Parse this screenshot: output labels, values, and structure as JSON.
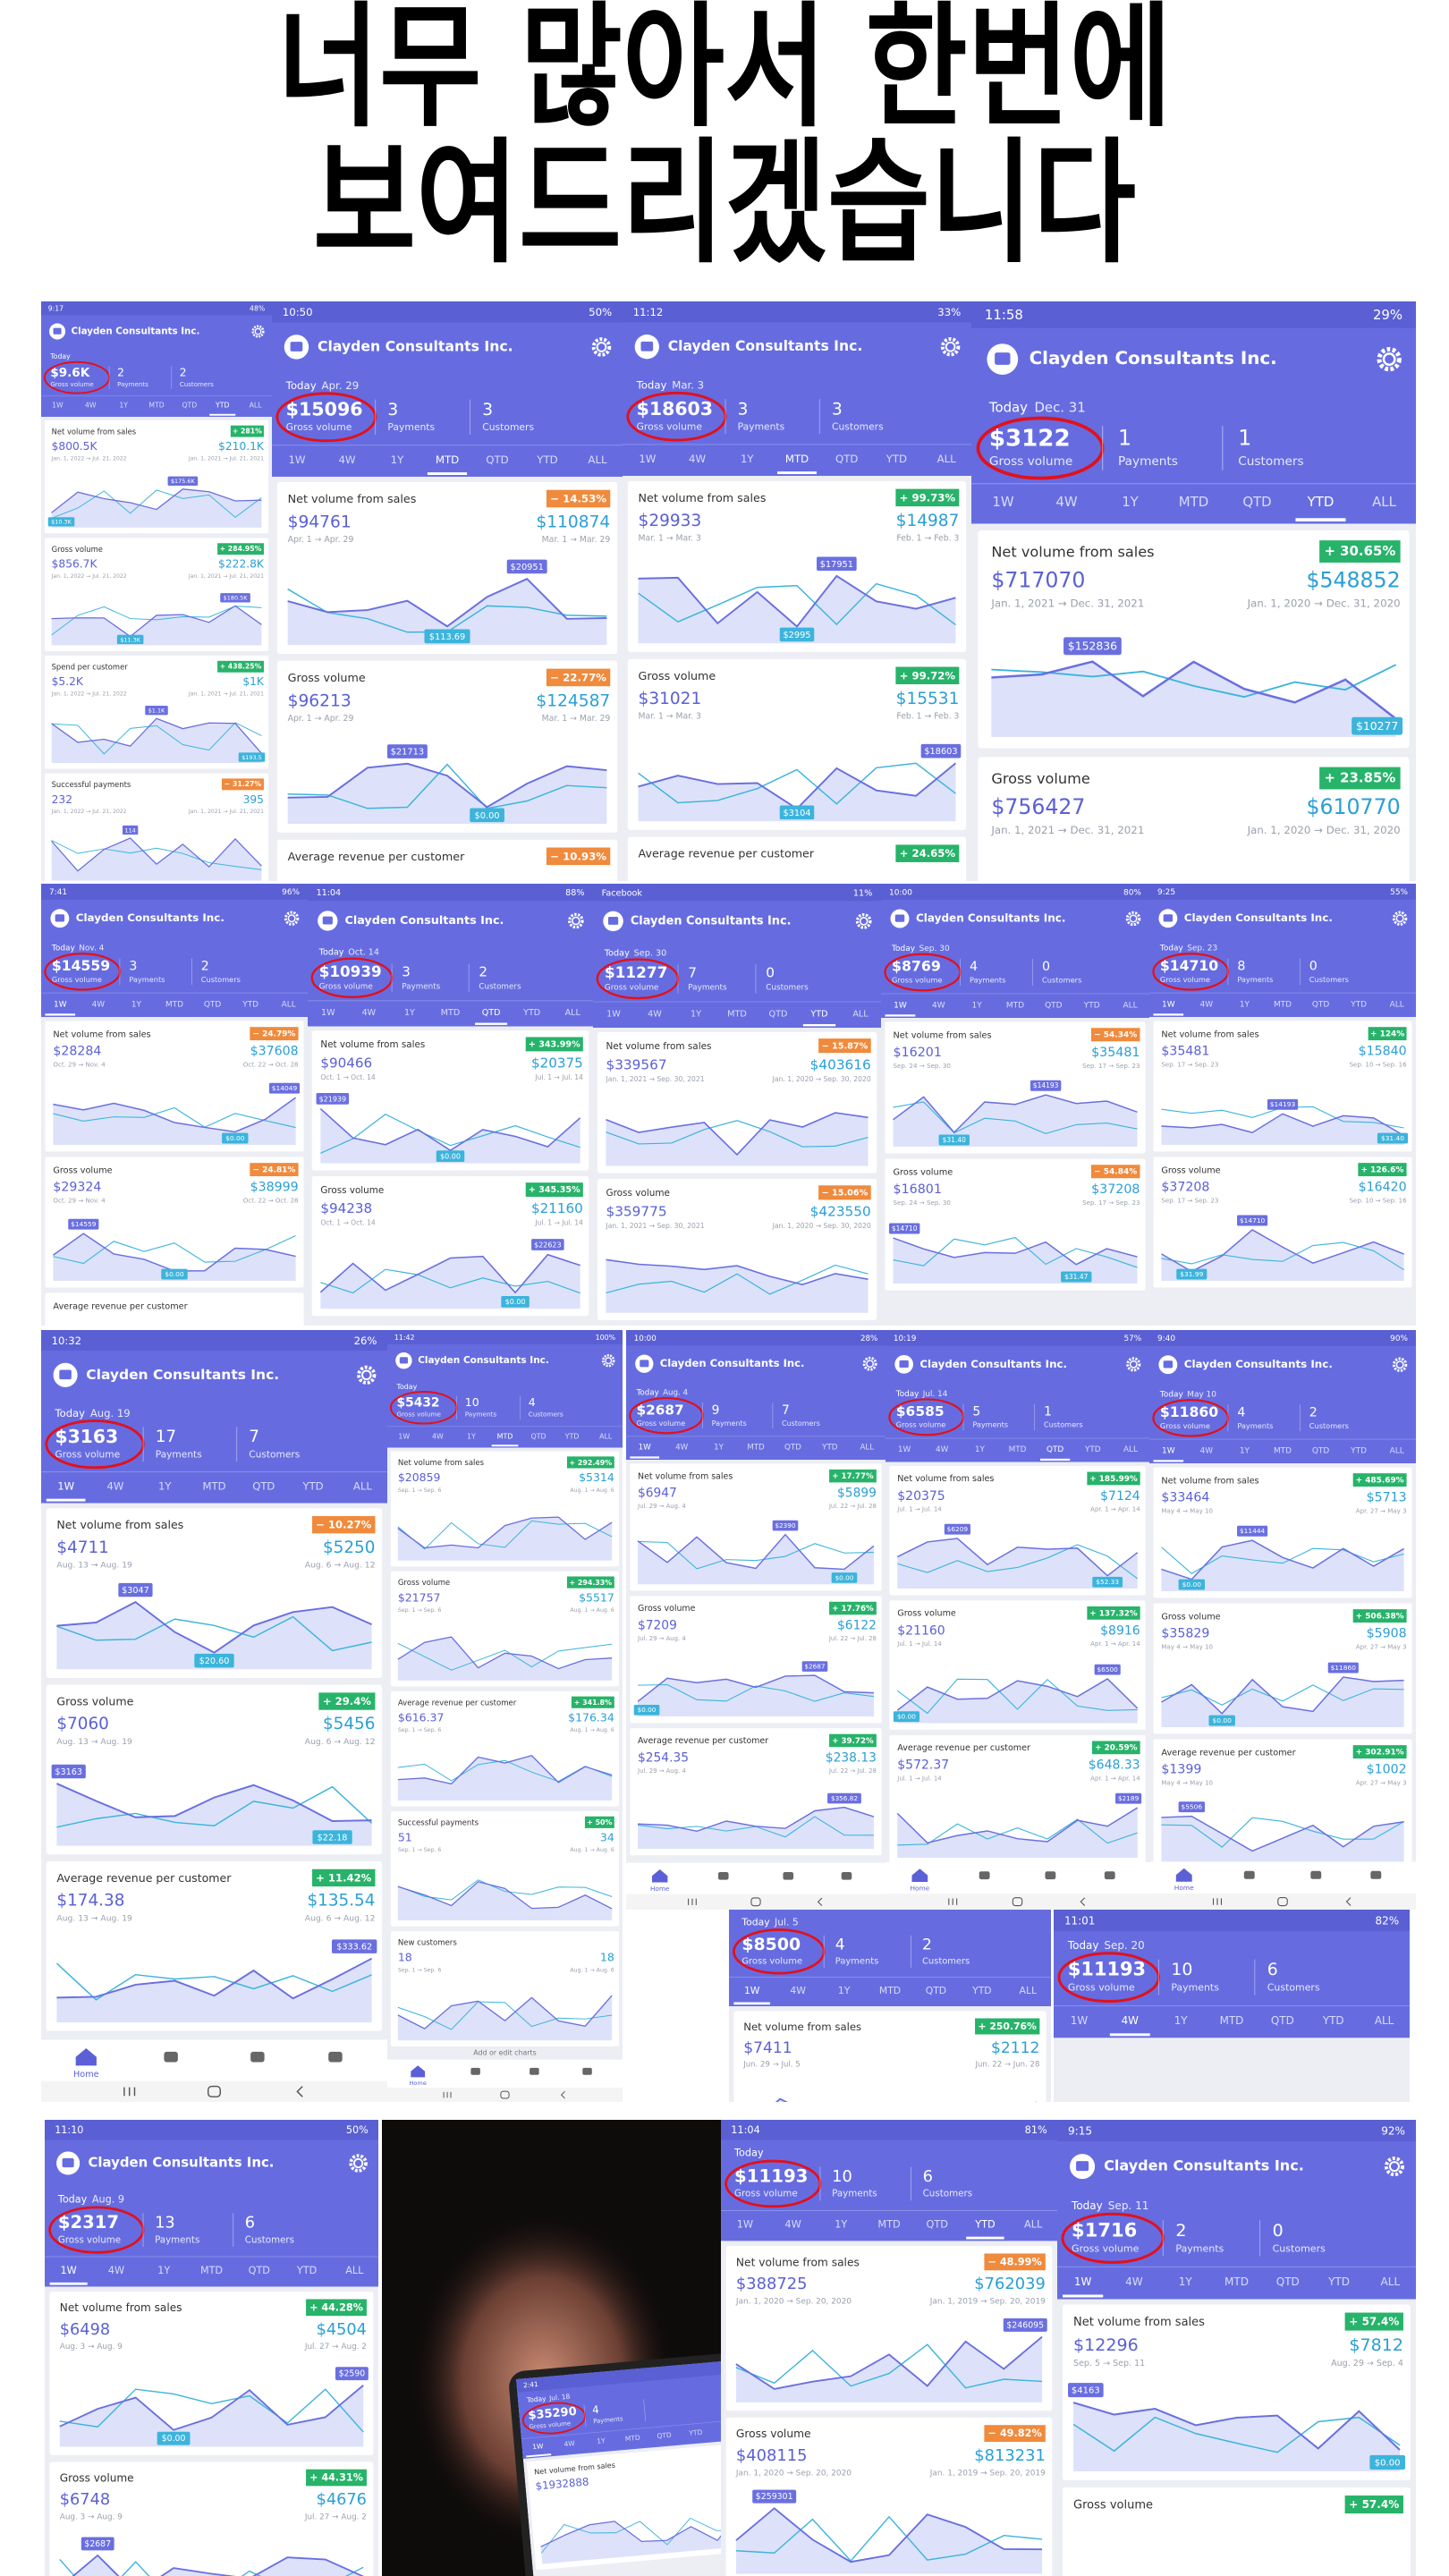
{
  "headline": [
    "너무 많아서 한번에",
    "보여드리겠습니다"
  ],
  "labels": {
    "today": "Today",
    "gross": "Gross volume",
    "payments": "Payments",
    "customers": "Customers",
    "tabs": [
      "1W",
      "4W",
      "1Y",
      "MTD",
      "QTD",
      "YTD",
      "ALL"
    ],
    "home": "Home",
    "add_charts": "Add or edit charts"
  },
  "screens": [
    {
      "time": "9:17",
      "battery": "48%",
      "company": "Clayden Consultants Inc.",
      "gross": "$9.6K",
      "payments": "2",
      "customers": "2",
      "active_tab": "YTD",
      "cards": [
        {
          "title": "Net volume from sales",
          "pct": "+ 281%",
          "value": "$800.5K",
          "compare": "$210.1K",
          "range": "Jan. 1, 2022 → Jul. 21, 2022",
          "compare_range": "Jan. 1, 2021 → Jul. 21, 2021",
          "marks": [
            "$175.6K",
            "$10.3K"
          ]
        },
        {
          "title": "Gross volume",
          "pct": "+ 284.95%",
          "value": "$856.7K",
          "compare": "$222.8K",
          "range": "Jan. 1, 2022 → Jul. 21, 2022",
          "compare_range": "Jan. 1, 2021 → Jul. 21, 2021",
          "marks": [
            "$180.5K",
            "$11.3K"
          ]
        },
        {
          "title": "Spend per customer",
          "pct": "+ 438.25%",
          "value": "$5.2K",
          "compare": "$1K",
          "range": "Jan. 1, 2022 → Jul. 21, 2022",
          "compare_range": "Jan. 1, 2021 → Jul. 21, 2021",
          "marks": [
            "$1.1K",
            "$193.5"
          ]
        },
        {
          "title": "Successful payments",
          "pct": "− 31.27%",
          "value": "232",
          "compare": "395",
          "range": "Jan. 1, 2022 → Jul. 21, 2022",
          "compare_range": "Jan. 1, 2021 → Jul. 21, 2021",
          "marks": [
            "114"
          ]
        }
      ]
    },
    {
      "time": "10:50",
      "battery": "50%",
      "company": "Clayden Consultants Inc.",
      "date": "Apr. 29",
      "gross": "$15096",
      "payments": "3",
      "customers": "3",
      "active_tab": "MTD",
      "cards": [
        {
          "title": "Net volume from sales",
          "pct": "− 14.53%",
          "value": "$94761",
          "compare": "$110874",
          "range": "Apr. 1 → Apr. 29",
          "compare_range": "Mar. 1 → Mar. 29",
          "marks": [
            "$20951",
            "$113.69"
          ]
        },
        {
          "title": "Gross volume",
          "pct": "− 22.77%",
          "value": "$96213",
          "compare": "$124587",
          "range": "Apr. 1 → Apr. 29",
          "compare_range": "Mar. 1 → Mar. 29",
          "marks": [
            "$21713",
            "$0.00"
          ]
        },
        {
          "title": "Average revenue per customer",
          "pct": "− 10.93%"
        }
      ]
    },
    {
      "time": "11:12",
      "battery": "33%",
      "company": "Clayden Consultants Inc.",
      "date": "Mar. 3",
      "gross": "$18603",
      "payments": "3",
      "customers": "3",
      "active_tab": "MTD",
      "cards": [
        {
          "title": "Net volume from sales",
          "pct": "+ 99.73%",
          "value": "$29933",
          "compare": "$14987",
          "range": "Mar. 1 → Mar. 3",
          "compare_range": "Feb. 1 → Feb. 3",
          "marks": [
            "$17951",
            "$2995"
          ]
        },
        {
          "title": "Gross volume",
          "pct": "+ 99.72%",
          "value": "$31021",
          "compare": "$15531",
          "range": "Mar. 1 → Mar. 3",
          "compare_range": "Feb. 1 → Feb. 3",
          "marks": [
            "$18603",
            "$3104"
          ]
        },
        {
          "title": "Average revenue per customer",
          "pct": "+ 24.65%"
        }
      ]
    },
    {
      "time": "11:58",
      "battery": "29%",
      "company": "Clayden Consultants Inc.",
      "date": "Dec. 31",
      "gross": "$3122",
      "payments": "1",
      "customers": "1",
      "active_tab": "YTD",
      "cards": [
        {
          "title": "Net volume from sales",
          "pct": "+ 30.65%",
          "value": "$717070",
          "compare": "$548852",
          "range": "Jan. 1, 2021 → Dec. 31, 2021",
          "compare_range": "Jan. 1, 2020 → Dec. 31, 2020",
          "marks": [
            "$152836",
            "$10277"
          ]
        },
        {
          "title": "Gross volume",
          "pct": "+ 23.85%",
          "value": "$756427",
          "compare": "$610770",
          "range": "Jan. 1, 2021 → Dec. 31, 2021",
          "compare_range": "Jan. 1, 2020 → Dec. 31, 2020"
        }
      ]
    },
    {
      "time": "7:41",
      "battery": "96%",
      "company": "Clayden Consultants Inc.",
      "date": "Nov. 4",
      "gross": "$14559",
      "payments": "3",
      "customers": "2",
      "active_tab": "1W",
      "cards": [
        {
          "title": "Net volume from sales",
          "pct": "− 24.79%",
          "value": "$28284",
          "compare": "$37608",
          "range": "Oct. 29 → Nov. 4",
          "compare_range": "Oct. 22 → Oct. 28",
          "marks": [
            "$14049",
            "$0.00"
          ]
        },
        {
          "title": "Gross volume",
          "pct": "− 24.81%",
          "value": "$29324",
          "compare": "$38999",
          "range": "Oct. 29 → Nov. 4",
          "compare_range": "Oct. 22 → Oct. 28",
          "marks": [
            "$14559",
            "$0.00"
          ]
        },
        {
          "title": "Average revenue per customer"
        }
      ]
    },
    {
      "time": "11:04",
      "battery": "88%",
      "company": "Clayden Consultants Inc.",
      "date": "Oct. 14",
      "gross": "$10939",
      "payments": "3",
      "customers": "2",
      "active_tab": "QTD",
      "cards": [
        {
          "title": "Net volume from sales",
          "pct": "+ 343.99%",
          "value": "$90466",
          "compare": "$20375",
          "range": "Oct. 1 → Oct. 14",
          "compare_range": "Jul. 1 → Jul. 14",
          "marks": [
            "$21939",
            "$0.00"
          ]
        },
        {
          "title": "Gross volume",
          "pct": "+ 345.35%",
          "value": "$94238",
          "compare": "$21160",
          "range": "Oct. 1 → Oct. 14",
          "compare_range": "Jul. 1 → Jul. 14",
          "marks": [
            "$22623",
            "$0.00"
          ]
        }
      ]
    },
    {
      "time": "Facebook",
      "battery": "11%",
      "company": "Clayden Consultants Inc.",
      "date": "Sep. 30",
      "gross": "$11277",
      "payments": "7",
      "customers": "0",
      "active_tab": "YTD",
      "cards": [
        {
          "title": "Net volume from sales",
          "pct": "− 15.87%",
          "value": "$339567",
          "compare": "$403616",
          "range": "Jan. 1, 2021 → Sep. 30, 2021",
          "compare_range": "Jan. 1, 2020 → Sep. 30, 2020"
        },
        {
          "title": "Gross volume",
          "pct": "− 15.06%",
          "value": "$359775",
          "compare": "$423550",
          "range": "Jan. 1, 2021 → Sep. 30, 2021",
          "compare_range": "Jan. 1, 2020 → Sep. 30, 2020"
        }
      ]
    },
    {
      "time": "10:00",
      "battery": "80%",
      "company": "Clayden Consultants Inc.",
      "date": "Sep. 30",
      "gross": "$8769",
      "payments": "4",
      "customers": "0",
      "active_tab": "1W",
      "cards": [
        {
          "title": "Net volume from sales",
          "pct": "− 54.34%",
          "value": "$16201",
          "compare": "$35481",
          "range": "Sep. 24 → Sep. 30",
          "compare_range": "Sep. 17 → Sep. 23",
          "marks": [
            "$14193",
            "$31.40"
          ]
        },
        {
          "title": "Gross volume",
          "pct": "− 54.84%",
          "value": "$16801",
          "compare": "$37208",
          "range": "Sep. 24 → Sep. 30",
          "compare_range": "Sep. 17 → Sep. 23",
          "marks": [
            "$14710",
            "$31.47"
          ]
        }
      ]
    },
    {
      "time": "9:25",
      "battery": "55%",
      "company": "Clayden Consultants Inc.",
      "date": "Sep. 23",
      "gross": "$14710",
      "payments": "8",
      "customers": "0",
      "active_tab": "1W",
      "cards": [
        {
          "title": "Net volume from sales",
          "pct": "+ 124%",
          "value": "$35481",
          "compare": "$15840",
          "range": "Sep. 17 → Sep. 23",
          "compare_range": "Sep. 10 → Sep. 16",
          "marks": [
            "$14193",
            "$31.40"
          ]
        },
        {
          "title": "Gross volume",
          "pct": "+ 126.6%",
          "value": "$37208",
          "compare": "$16420",
          "range": "Sep. 17 → Sep. 23",
          "compare_range": "Sep. 10 → Sep. 16",
          "marks": [
            "$14710",
            "$31.99"
          ]
        }
      ]
    },
    {
      "time": "10:32",
      "battery": "26%",
      "company": "Clayden Consultants Inc.",
      "date": "Aug. 19",
      "gross": "$3163",
      "payments": "17",
      "customers": "7",
      "active_tab": "1W",
      "nav": true,
      "cards": [
        {
          "title": "Net volume from sales",
          "pct": "− 10.27%",
          "value": "$4711",
          "compare": "$5250",
          "range": "Aug. 13 → Aug. 19",
          "compare_range": "Aug. 6 → Aug. 12",
          "marks": [
            "$3047",
            "$20.60"
          ]
        },
        {
          "title": "Gross volume",
          "pct": "+ 29.4%",
          "value": "$7060",
          "compare": "$5456",
          "range": "Aug. 13 → Aug. 19",
          "compare_range": "Aug. 6 → Aug. 12",
          "marks": [
            "$3163",
            "$22.18"
          ]
        },
        {
          "title": "Average revenue per customer",
          "pct": "+ 11.42%",
          "value": "$174.38",
          "compare": "$135.54",
          "range": "Aug. 13 → Aug. 19",
          "compare_range": "Aug. 6 → Aug. 12",
          "marks": [
            "$333.62"
          ]
        }
      ]
    },
    {
      "time": "11:42",
      "battery": "100%",
      "company": "Clayden Consultants Inc.",
      "gross": "$5432",
      "payments": "10",
      "customers": "4",
      "active_tab": "MTD",
      "nav": true,
      "add_charts": true,
      "cards": [
        {
          "title": "Net volume from sales",
          "pct": "+ 292.49%",
          "value": "$20859",
          "compare": "$5314",
          "range": "Sep. 1 → Sep. 6",
          "compare_range": "Aug. 1 → Aug. 6"
        },
        {
          "title": "Gross volume",
          "pct": "+ 294.33%",
          "value": "$21757",
          "compare": "$5517",
          "range": "Sep. 1 → Sep. 6",
          "compare_range": "Aug. 1 → Aug. 6"
        },
        {
          "title": "Average revenue per customer",
          "pct": "+ 341.8%",
          "value": "$616.37",
          "compare": "$176.34",
          "range": "Sep. 1 → Sep. 6",
          "compare_range": "Aug. 1 → Aug. 6"
        },
        {
          "title": "Successful payments",
          "pct": "+ 50%",
          "value": "51",
          "compare": "34",
          "range": "Sep. 1 → Sep. 6",
          "compare_range": "Aug. 1 → Aug. 6"
        },
        {
          "title": "New customers",
          "value": "18",
          "compare": "18",
          "range": "Sep. 1 → Sep. 6",
          "compare_range": "Aug. 1 → Aug. 6"
        }
      ]
    },
    {
      "time": "10:00",
      "battery": "28%",
      "company": "Clayden Consultants Inc.",
      "date": "Aug. 4",
      "gross": "$2687",
      "payments": "9",
      "customers": "7",
      "active_tab": "1W",
      "nav": true,
      "cards": [
        {
          "title": "Net volume from sales",
          "pct": "+ 17.77%",
          "value": "$6947",
          "compare": "$5899",
          "range": "Jul. 29 → Aug. 4",
          "compare_range": "Jul. 22 → Jul. 28",
          "marks": [
            "$2390",
            "$0.00"
          ]
        },
        {
          "title": "Gross volume",
          "pct": "+ 17.76%",
          "value": "$7209",
          "compare": "$6122",
          "range": "Jul. 29 → Aug. 4",
          "compare_range": "Jul. 22 → Jul. 28",
          "marks": [
            "$2687",
            "$0.00"
          ]
        },
        {
          "title": "Average revenue per customer",
          "pct": "+ 39.72%",
          "value": "$254.35",
          "compare": "$238.13",
          "range": "Jul. 29 → Aug. 4",
          "compare_range": "Jul. 22 → Jul. 28",
          "marks": [
            "$356.82"
          ]
        }
      ]
    },
    {
      "time": "10:19",
      "battery": "57%",
      "company": "Clayden Consultants Inc.",
      "date": "Jul. 14",
      "gross": "$6585",
      "payments": "5",
      "customers": "1",
      "active_tab": "QTD",
      "nav": true,
      "cards": [
        {
          "title": "Net volume from sales",
          "pct": "+ 185.99%",
          "value": "$20375",
          "compare": "$7124",
          "range": "Jul. 1 → Jul. 14",
          "compare_range": "Apr. 1 → Apr. 14",
          "marks": [
            "$6209",
            "$52.33"
          ]
        },
        {
          "title": "Gross volume",
          "pct": "+ 137.32%",
          "value": "$21160",
          "compare": "$8916",
          "range": "Jul. 1 → Jul. 14",
          "compare_range": "Apr. 1 → Apr. 14",
          "marks": [
            "$6500",
            "$0.00"
          ]
        },
        {
          "title": "Average revenue per customer",
          "pct": "+ 20.59%",
          "value": "$572.37",
          "compare": "$648.33",
          "range": "Jul. 1 → Jul. 14",
          "compare_range": "Apr. 1 → Apr. 14",
          "marks": [
            "$2189"
          ]
        }
      ]
    },
    {
      "time": "9:40",
      "battery": "90%",
      "company": "Clayden Consultants Inc.",
      "date": "May 10",
      "gross": "$11860",
      "payments": "4",
      "customers": "2",
      "active_tab": "1W",
      "nav": true,
      "cards": [
        {
          "title": "Net volume from sales",
          "pct": "+ 485.69%",
          "value": "$33464",
          "compare": "$5713",
          "range": "May 4 → May 10",
          "compare_range": "Apr. 27 → May 3",
          "marks": [
            "$11444",
            "$0.00"
          ]
        },
        {
          "title": "Gross volume",
          "pct": "+ 506.38%",
          "value": "$35829",
          "compare": "$5908",
          "range": "May 4 → May 10",
          "compare_range": "Apr. 27 → May 3",
          "marks": [
            "$11860",
            "$0.00"
          ]
        },
        {
          "title": "Average revenue per customer",
          "pct": "+ 302.91%",
          "value": "$1399",
          "compare": "$1002",
          "range": "May 4 → May 10",
          "compare_range": "Apr. 27 → May 3",
          "marks": [
            "$5506"
          ]
        }
      ]
    },
    {
      "date": "Jul. 5",
      "gross": "$8500",
      "payments": "4",
      "customers": "2",
      "active_tab": "1W",
      "cards": [
        {
          "title": "Net volume from sales",
          "pct": "+ 250.76%",
          "value": "$7411",
          "compare": "$2112",
          "range": "Jun. 29 → Jul. 5",
          "compare_range": "Jun. 22 → Jun. 28"
        }
      ]
    },
    {
      "time": "11:01",
      "battery": "82%",
      "date": "Sep. 20",
      "gross": "$11193",
      "payments": "10",
      "customers": "6",
      "active_tab": "4W"
    },
    {
      "time": "11:10",
      "battery": "50%",
      "company": "Clayden Consultants Inc.",
      "date": "Aug. 9",
      "gross": "$2317",
      "payments": "13",
      "customers": "6",
      "active_tab": "1W",
      "cards": [
        {
          "title": "Net volume from sales",
          "pct": "+ 44.28%",
          "value": "$6498",
          "compare": "$4504",
          "range": "Aug. 3 → Aug. 9",
          "compare_range": "Jul. 27 → Aug. 2",
          "marks": [
            "$2590",
            "$0.00"
          ]
        },
        {
          "title": "Gross volume",
          "pct": "+ 44.31%",
          "value": "$6748",
          "compare": "$4676",
          "range": "Aug. 3 → Aug. 9",
          "compare_range": "Jul. 27 → Aug. 2",
          "marks": [
            "$2687"
          ]
        }
      ]
    },
    {
      "time": "11:04",
      "battery": "81%",
      "gross": "$11193",
      "payments": "10",
      "customers": "6",
      "active_tab": "YTD",
      "cards": [
        {
          "title": "Net volume from sales",
          "pct": "− 48.99%",
          "value": "$388725",
          "compare": "$762039",
          "range": "Jan. 1, 2020 → Sep. 20, 2020",
          "compare_range": "Jan. 1, 2019 → Sep. 20, 2019",
          "marks": [
            "$246095"
          ]
        },
        {
          "title": "Gross volume",
          "pct": "− 49.82%",
          "value": "$408115",
          "compare": "$813231",
          "range": "Jan. 1, 2020 → Sep. 20, 2020",
          "compare_range": "Jan. 1, 2019 → Sep. 20, 2019",
          "marks": [
            "$259301"
          ]
        }
      ]
    },
    {
      "time": "9:15",
      "battery": "92%",
      "company": "Clayden Consultants Inc.",
      "date": "Sep. 11",
      "gross": "$1716",
      "payments": "2",
      "customers": "0",
      "active_tab": "1W",
      "cards": [
        {
          "title": "Net volume from sales",
          "pct": "+ 57.4%",
          "value": "$12296",
          "compare": "$7812",
          "range": "Sep. 5 → Sep. 11",
          "compare_range": "Aug. 29 → Sep. 4",
          "marks": [
            "$4163",
            "$0.00"
          ]
        },
        {
          "title": "Gross volume",
          "pct": "+ 57.4%"
        }
      ]
    }
  ],
  "photo": {
    "phone": {
      "time": "2:41",
      "date": "Jul. 18",
      "gross": "$35290",
      "payments": "4",
      "active_tab": "1W",
      "cards": [
        {
          "title": "Net volume from sales",
          "value": "$1932888"
        }
      ]
    }
  }
}
